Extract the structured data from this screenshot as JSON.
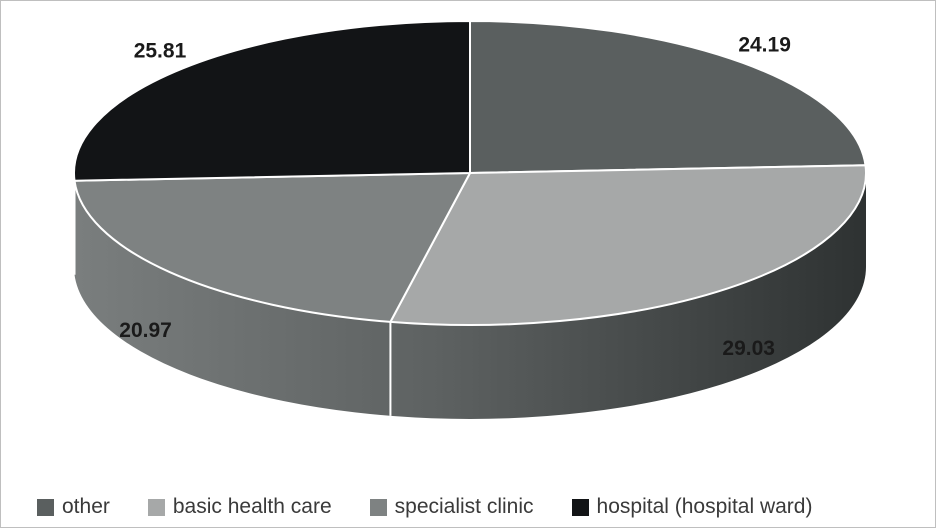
{
  "chart_data": {
    "type": "pie",
    "title": "",
    "slices": [
      {
        "label": "other",
        "value": 24.19,
        "color": "#5a5f5f",
        "display": "24.19"
      },
      {
        "label": "basic health care",
        "value": 29.03,
        "color": "#a6a8a8",
        "display": "29.03"
      },
      {
        "label": "specialist clinic",
        "value": 20.97,
        "color": "#7e8282",
        "display": "20.97"
      },
      {
        "label": "hospital (hospital ward)",
        "value": 25.81,
        "color": "#121416",
        "display": "25.81"
      }
    ],
    "legend_position": "bottom",
    "three_d": true
  }
}
